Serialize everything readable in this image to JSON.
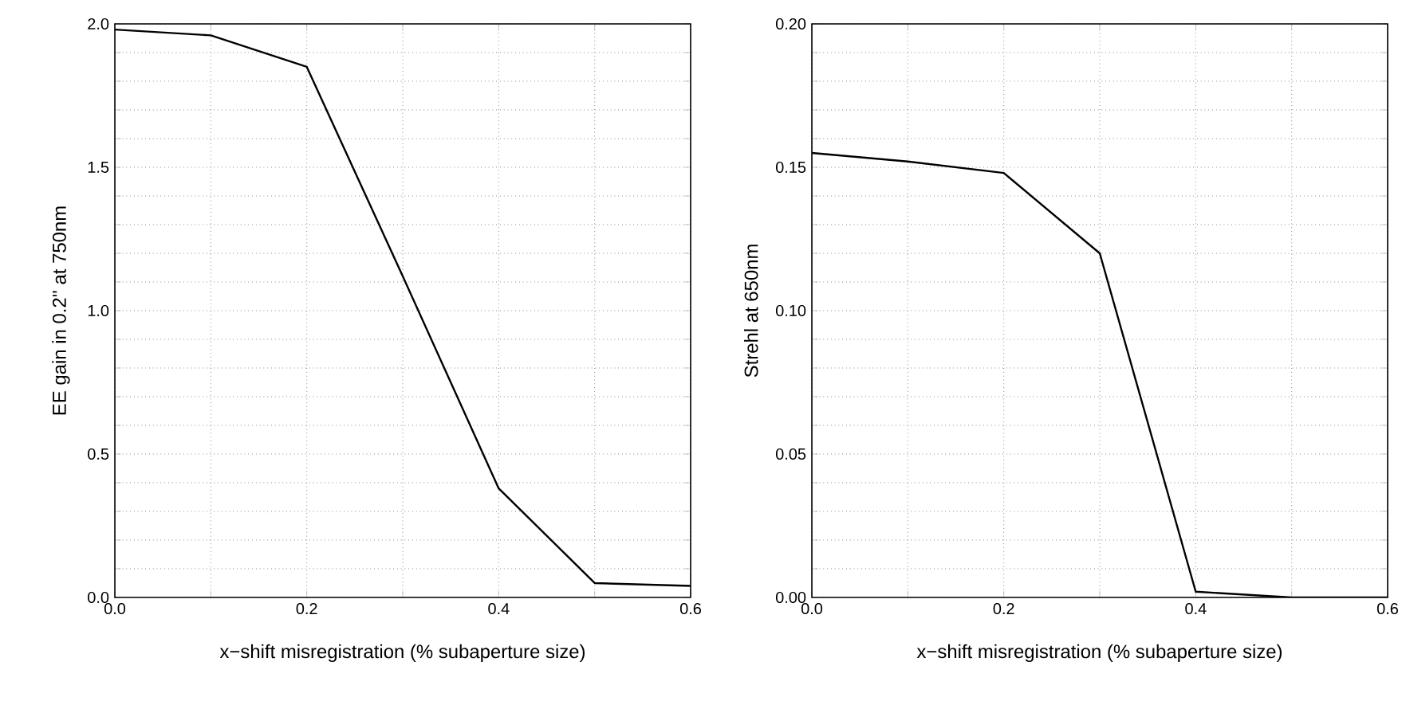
{
  "chart_data": [
    {
      "type": "line",
      "xlabel": "x−shift misregistration (% subaperture size)",
      "ylabel": "EE gain in 0.2'' at 750nm",
      "grid": true,
      "marker": "none",
      "line_style": "solid",
      "x": [
        0,
        0.1,
        0.2,
        0.3,
        0.4,
        0.5,
        0.6
      ],
      "series": [
        {
          "color": "#000000",
          "values": [
            1.98,
            1.96,
            1.85,
            1.12,
            0.38,
            0.05,
            0.04
          ]
        }
      ],
      "xlim": [
        0,
        0.6
      ],
      "xticks": [
        {
          "value": 0,
          "label": "0.0"
        },
        {
          "value": 0.1,
          "label": null
        },
        0.2,
        {
          "value": 0.3,
          "label": null
        },
        0.4,
        {
          "value": 0.5,
          "label": null
        },
        0.6
      ],
      "ylim": [
        0,
        2
      ],
      "yticks": [
        {
          "value": 0,
          "label": "0.0"
        },
        {
          "value": 0.1,
          "label": null
        },
        {
          "value": 0.2,
          "label": null
        },
        {
          "value": 0.3,
          "label": null
        },
        {
          "value": 0.4,
          "label": null
        },
        0.5,
        {
          "value": 0.6,
          "label": null
        },
        {
          "value": 0.7,
          "label": null
        },
        {
          "value": 0.8,
          "label": null
        },
        {
          "value": 0.9,
          "label": null
        },
        {
          "value": 1,
          "label": "1.0"
        },
        {
          "value": 1.1,
          "label": null
        },
        {
          "value": 1.2,
          "label": null
        },
        {
          "value": 1.3,
          "label": null
        },
        {
          "value": 1.4,
          "label": null
        },
        1.5,
        {
          "value": 1.6,
          "label": null
        },
        {
          "value": 1.7,
          "label": null
        },
        {
          "value": 1.8,
          "label": null
        },
        {
          "value": 1.9,
          "label": null
        },
        {
          "value": 2,
          "label": "2.0"
        }
      ]
    },
    {
      "type": "line",
      "xlabel": "x−shift misregistration (% subaperture size)",
      "ylabel": "Strehl at 650nm",
      "grid": true,
      "marker": "none",
      "line_style": "solid",
      "x": [
        0,
        0.1,
        0.2,
        0.3,
        0.4,
        0.5,
        0.6
      ],
      "series": [
        {
          "color": "#000000",
          "values": [
            0.155,
            0.152,
            0.148,
            0.12,
            0.002,
            0.0,
            0.0
          ]
        }
      ],
      "xlim": [
        0,
        0.6
      ],
      "xticks": [
        {
          "value": 0,
          "label": "0.0"
        },
        {
          "value": 0.1,
          "label": null
        },
        0.2,
        {
          "value": 0.3,
          "label": null
        },
        0.4,
        {
          "value": 0.5,
          "label": null
        },
        0.6
      ],
      "ylim": [
        0,
        0.2
      ],
      "yticks": [
        {
          "value": 0,
          "label": "0.00"
        },
        {
          "value": 0.01,
          "label": null
        },
        {
          "value": 0.02,
          "label": null
        },
        {
          "value": 0.03,
          "label": null
        },
        {
          "value": 0.04,
          "label": null
        },
        0.05,
        {
          "value": 0.06,
          "label": null
        },
        {
          "value": 0.07,
          "label": null
        },
        {
          "value": 0.08,
          "label": null
        },
        {
          "value": 0.09,
          "label": null
        },
        {
          "value": 0.1,
          "label": "0.10"
        },
        {
          "value": 0.11,
          "label": null
        },
        {
          "value": 0.12,
          "label": null
        },
        {
          "value": 0.13,
          "label": null
        },
        {
          "value": 0.14,
          "label": null
        },
        0.15,
        {
          "value": 0.16,
          "label": null
        },
        {
          "value": 0.17,
          "label": null
        },
        {
          "value": 0.18,
          "label": null
        },
        {
          "value": 0.19,
          "label": null
        },
        {
          "value": 0.2,
          "label": "0.20"
        }
      ]
    }
  ]
}
